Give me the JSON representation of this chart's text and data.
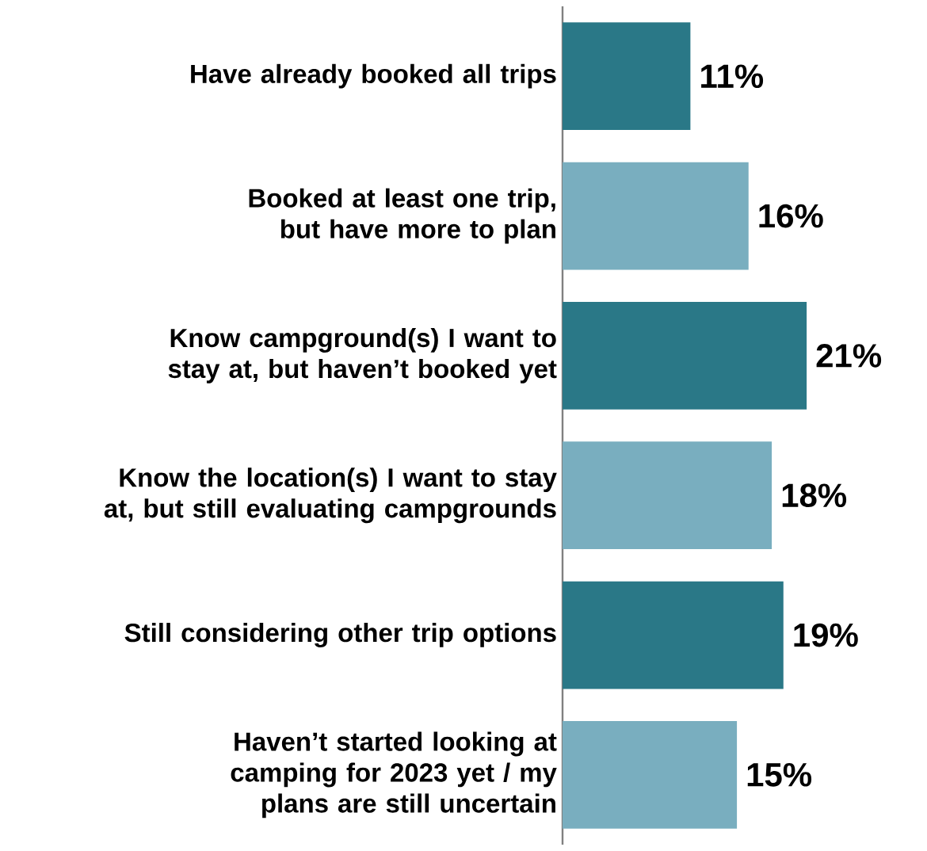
{
  "chart_data": {
    "type": "bar",
    "orientation": "horizontal",
    "categories": [
      "Have already booked all trips",
      "Booked at least one trip, but have more to plan",
      "Know campground(s) I want to stay at, but haven’t booked yet",
      "Know the location(s) I want to stay at, but still evaluating campgrounds",
      "Still considering other trip options",
      "Haven’t started looking at camping for 2023 yet / my plans are still uncertain"
    ],
    "values": [
      11,
      16,
      21,
      18,
      19,
      15
    ],
    "value_labels": [
      "11%",
      "16%",
      "21%",
      "18%",
      "19%",
      "15%"
    ],
    "colors": [
      "#2a7887",
      "#79aebf",
      "#2a7887",
      "#79aebf",
      "#2a7887",
      "#79aebf"
    ],
    "tick_labels": "y"
  }
}
